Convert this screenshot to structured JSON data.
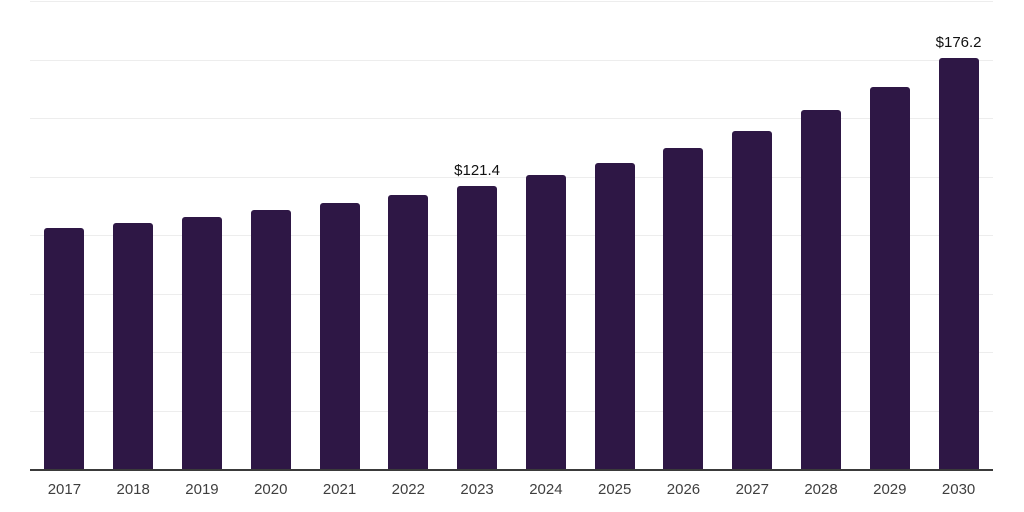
{
  "chart_data": {
    "type": "bar",
    "categories": [
      "2017",
      "2018",
      "2019",
      "2020",
      "2021",
      "2022",
      "2023",
      "2024",
      "2025",
      "2026",
      "2027",
      "2028",
      "2029",
      "2030"
    ],
    "values": [
      103.5,
      105.7,
      108.1,
      111.0,
      113.9,
      117.5,
      121.4,
      125.9,
      131.4,
      137.4,
      145.0,
      153.7,
      163.6,
      176.2
    ],
    "annotations": [
      {
        "category": "2023",
        "label": "$121.4"
      },
      {
        "category": "2030",
        "label": "$176.2"
      }
    ],
    "title": "",
    "xlabel": "",
    "ylabel": "",
    "ylim": [
      0,
      200
    ],
    "ytick_step": 25,
    "grid": "horizontal",
    "legend": false,
    "y_axis_labels_visible": false
  },
  "colors": {
    "bar": "#2e1745",
    "gridline": "#ededed",
    "axis_line": "#3a3a3a",
    "tick_label": "#3f3f3f",
    "data_label": "#111111",
    "background": "#ffffff"
  }
}
